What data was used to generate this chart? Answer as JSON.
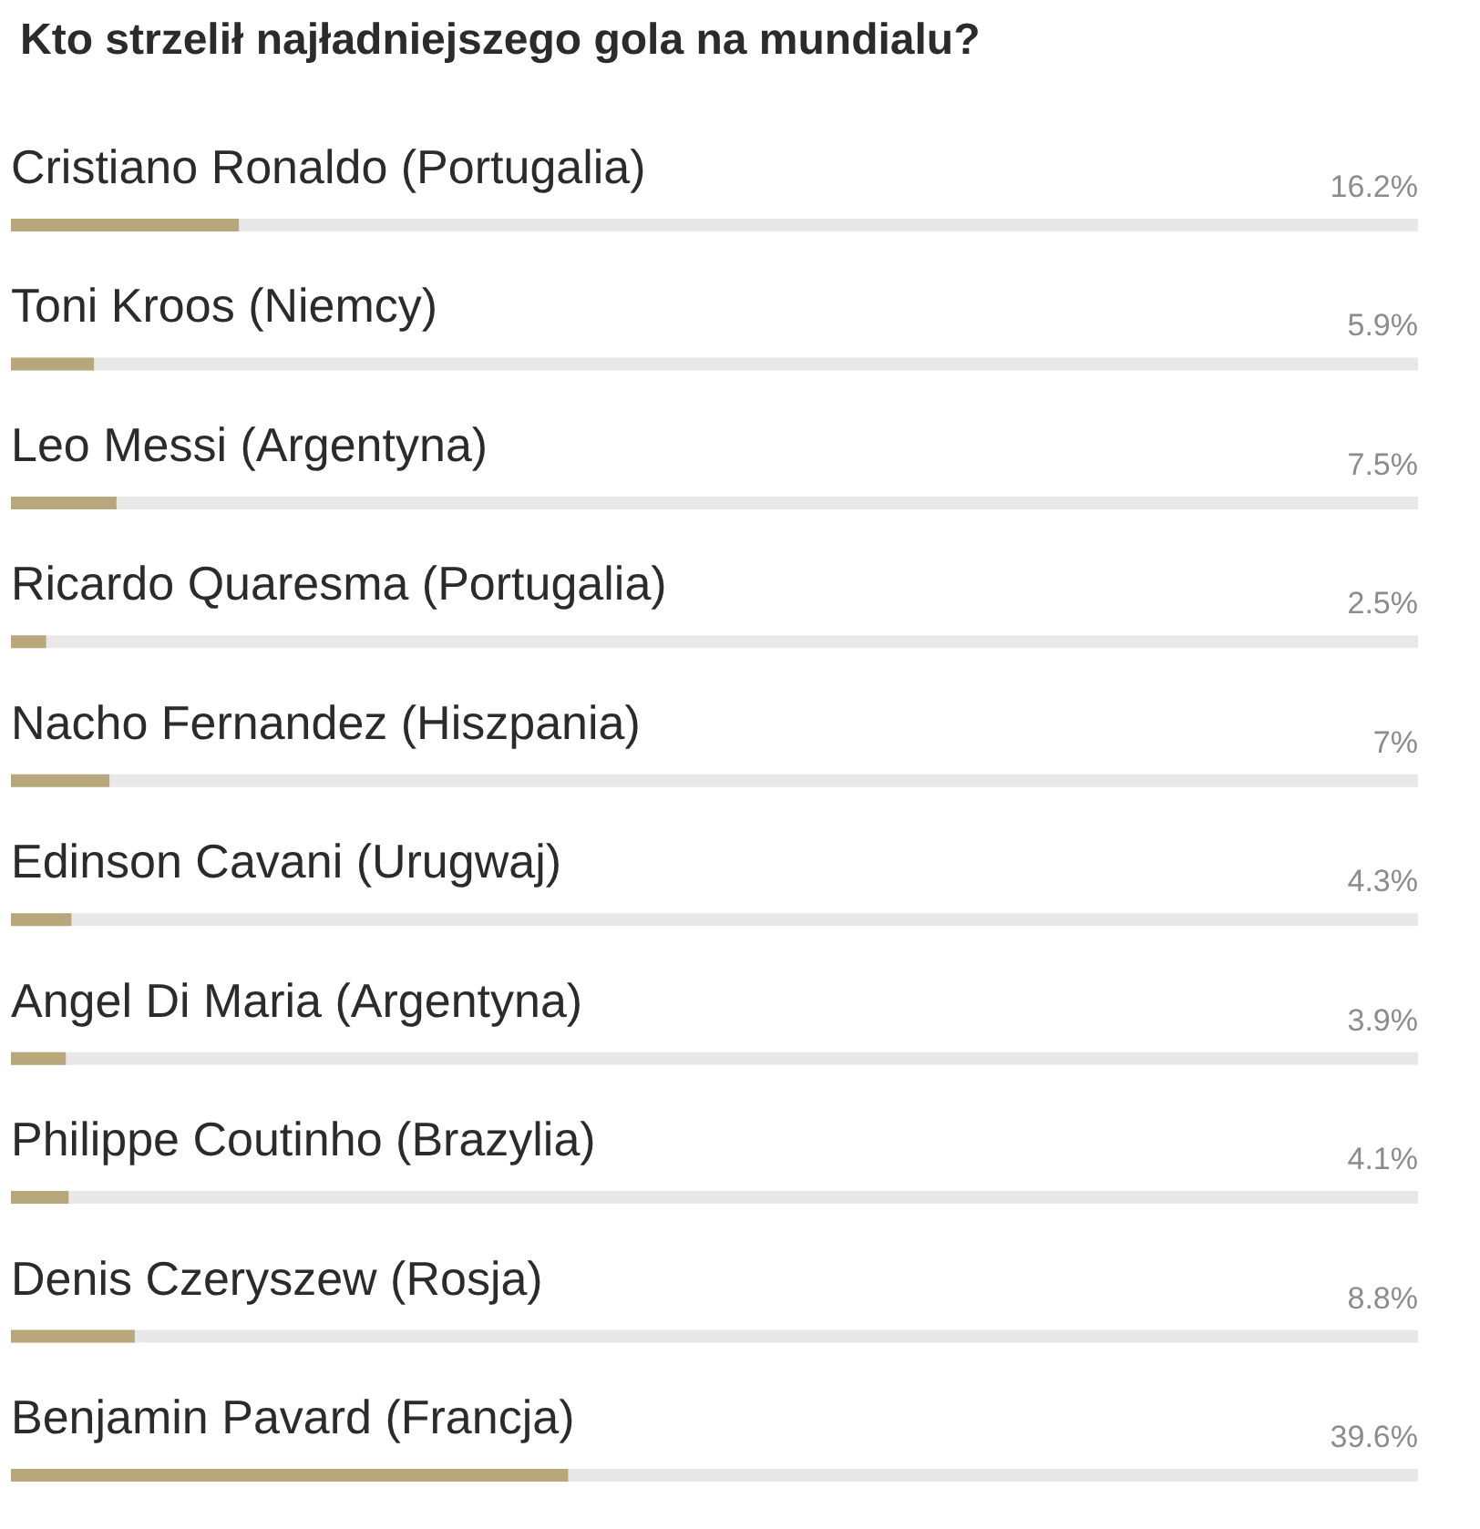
{
  "chart_data": {
    "type": "bar",
    "orientation": "horizontal",
    "title": "Kto strzelił najładniejszego gola na mundialu?",
    "categories": [
      "Cristiano Ronaldo (Portugalia)",
      "Toni Kroos (Niemcy)",
      "Leo Messi (Argentyna)",
      "Ricardo Quaresma (Portugalia)",
      "Nacho Fernandez (Hiszpania)",
      "Edinson Cavani (Urugwaj)",
      "Angel Di Maria (Argentyna)",
      "Philippe Coutinho (Brazylia)",
      "Denis Czeryszew (Rosja)",
      "Benjamin Pavard (Francja)"
    ],
    "values": [
      16.2,
      5.9,
      7.5,
      2.5,
      7,
      4.3,
      3.9,
      4.1,
      8.8,
      39.6
    ],
    "value_labels": [
      "16.2%",
      "5.9%",
      "7.5%",
      "2.5%",
      "7%",
      "4.3%",
      "3.9%",
      "4.1%",
      "8.8%",
      "39.6%"
    ],
    "color": "#b8a77a",
    "xlim": [
      0,
      100
    ],
    "tick_labels": "y"
  }
}
